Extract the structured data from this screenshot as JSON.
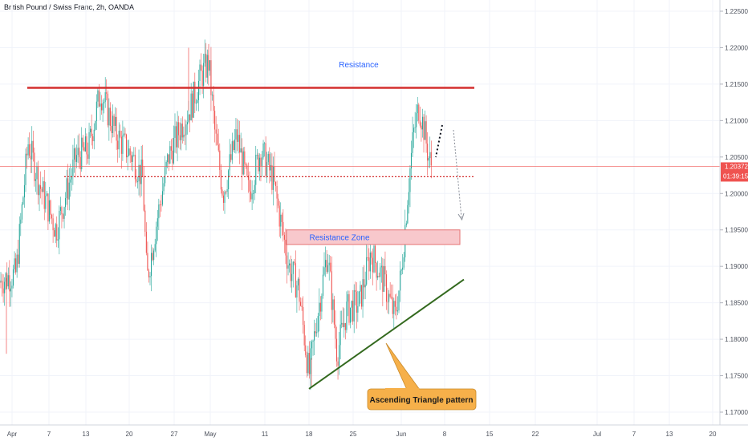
{
  "chart_title": "British Pound / Swiss Franc, 2h, OANDA",
  "colors": {
    "up": "#26a69a",
    "down": "#ef5350",
    "resistance_line": "#d32f2f",
    "support_line": "#33691e",
    "zone_fill": "#f8c8cc",
    "zone_border": "#e57373",
    "annotation_blue": "#2962ff",
    "callout_fill": "#f6b04a",
    "price_badge": "#ef5350"
  },
  "annotations": {
    "resistance_label": "Resistance",
    "zone_label": "Resistance Zone",
    "pattern_label": "Ascending Triangle pattern"
  },
  "price_badge": {
    "price": "1.20372",
    "countdown": "01:39:15"
  },
  "chart_data": {
    "type": "candlestick",
    "symbol": "GBPCHF",
    "interval": "2h",
    "y_axis": {
      "ylim": [
        1.1675,
        1.2275
      ],
      "ticks": [
        "1.17000",
        "1.17500",
        "1.18000",
        "1.18500",
        "1.19000",
        "1.19500",
        "1.20000",
        "1.20500",
        "1.21000",
        "1.21500",
        "1.22000",
        "1.22500"
      ]
    },
    "x_axis": {
      "tick_labels": [
        "Apr",
        "7",
        "13",
        "20",
        "27",
        "May",
        "11",
        "18",
        "25",
        "Jun",
        "8",
        "15",
        "22",
        "Jul",
        "7",
        "13",
        "20"
      ]
    },
    "approx_price_path": [
      [
        0,
        1.188
      ],
      [
        20,
        1.189
      ],
      [
        35,
        1.207
      ],
      [
        50,
        1.201
      ],
      [
        70,
        1.195
      ],
      [
        95,
        1.205
      ],
      [
        110,
        1.206
      ],
      [
        125,
        1.214
      ],
      [
        145,
        1.208
      ],
      [
        165,
        1.205
      ],
      [
        178,
        1.202
      ],
      [
        183,
        1.188
      ],
      [
        195,
        1.196
      ],
      [
        210,
        1.205
      ],
      [
        225,
        1.209
      ],
      [
        238,
        1.212
      ],
      [
        250,
        1.216
      ],
      [
        260,
        1.218
      ],
      [
        268,
        1.208
      ],
      [
        278,
        1.2
      ],
      [
        295,
        1.208
      ],
      [
        310,
        1.2
      ],
      [
        325,
        1.206
      ],
      [
        340,
        1.202
      ],
      [
        350,
        1.196
      ],
      [
        360,
        1.19
      ],
      [
        372,
        1.187
      ],
      [
        385,
        1.175
      ],
      [
        395,
        1.183
      ],
      [
        408,
        1.192
      ],
      [
        420,
        1.178
      ],
      [
        432,
        1.184
      ],
      [
        448,
        1.185
      ],
      [
        462,
        1.192
      ],
      [
        478,
        1.188
      ],
      [
        492,
        1.183
      ],
      [
        500,
        1.189
      ],
      [
        508,
        1.2
      ],
      [
        515,
        1.208
      ],
      [
        522,
        1.212
      ],
      [
        528,
        1.209
      ],
      [
        534,
        1.205
      ],
      [
        538,
        1.2037
      ]
    ],
    "resistance_level": 1.2145,
    "current_price": 1.20372,
    "dotted_level": 1.2023,
    "resistance_zone": [
      1.193,
      1.195
    ],
    "ascending_trendline": [
      [
        385,
        1.1732
      ],
      [
        578,
        1.1882
      ]
    ],
    "projection_arrow": [
      [
        565,
        1.209
      ],
      [
        576,
        1.198
      ]
    ]
  }
}
